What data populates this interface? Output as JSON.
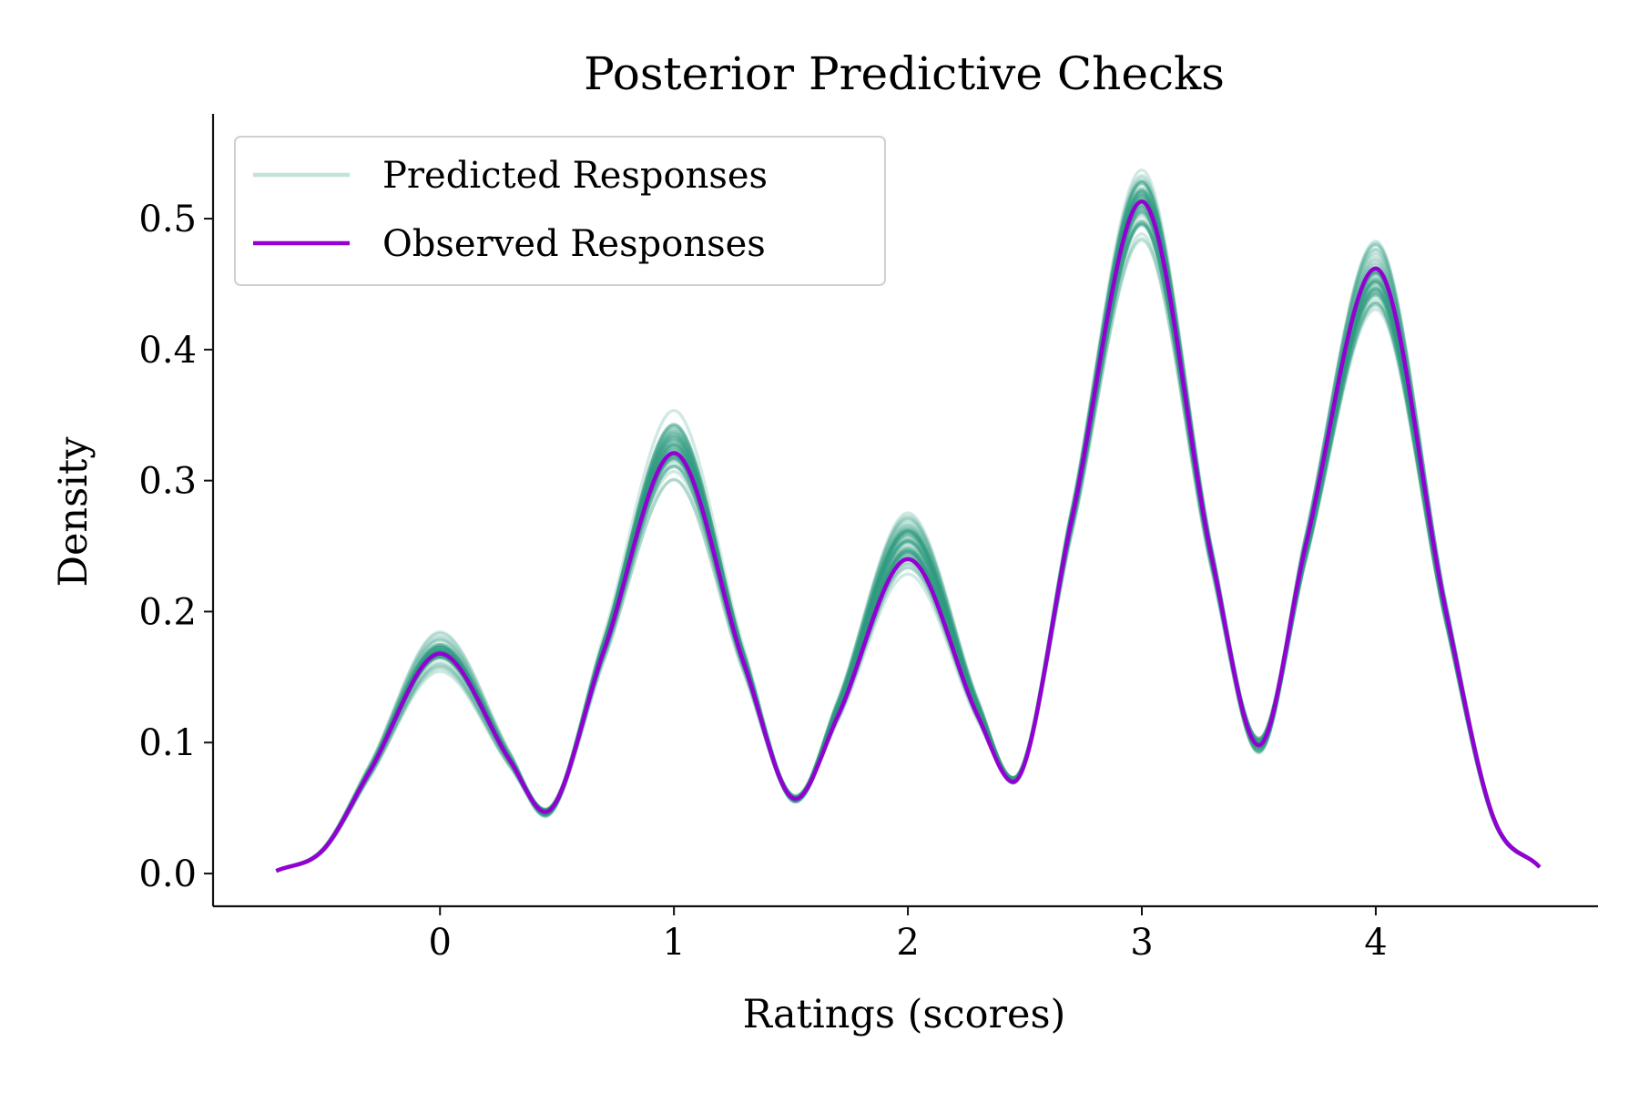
{
  "chart_data": {
    "type": "line",
    "title": "Posterior Predictive Checks",
    "xlabel": "Ratings (scores)",
    "ylabel": "Density",
    "xlim": [
      -0.97,
      4.95
    ],
    "ylim": [
      -0.025,
      0.58
    ],
    "xticks": [
      0,
      1,
      2,
      3,
      4
    ],
    "xtick_labels": [
      "0",
      "1",
      "2",
      "3",
      "4"
    ],
    "yticks": [
      0.0,
      0.1,
      0.2,
      0.3,
      0.4,
      0.5
    ],
    "ytick_labels": [
      "0.0",
      "0.1",
      "0.2",
      "0.3",
      "0.4",
      "0.5"
    ],
    "grid": false,
    "legend_position": "top-left",
    "series": [
      {
        "name": "Predicted Responses",
        "color": "#2e9a7f",
        "legend_color": "#c2e3d9",
        "sample_count": 60,
        "peak_ranges": [
          [
            0.15,
            0.19
          ],
          [
            0.295,
            0.36
          ],
          [
            0.225,
            0.28
          ],
          [
            0.475,
            0.55
          ],
          [
            0.42,
            0.488
          ]
        ],
        "trough_ranges": [
          [
            0.043,
            0.05
          ],
          [
            0.054,
            0.06
          ],
          [
            0.068,
            0.074
          ],
          [
            0.091,
            0.104
          ]
        ],
        "x_range": [
          -0.7,
          4.7
        ]
      },
      {
        "name": "Observed Responses",
        "color": "#9400d3",
        "x": [
          -0.7,
          -0.5,
          -0.3,
          0.0,
          0.3,
          0.45,
          0.7,
          1.0,
          1.3,
          1.52,
          1.7,
          2.0,
          2.3,
          2.45,
          2.7,
          3.0,
          3.3,
          3.5,
          3.7,
          4.0,
          4.3,
          4.5,
          4.7
        ],
        "y": [
          0.002,
          0.018,
          0.078,
          0.168,
          0.086,
          0.047,
          0.17,
          0.321,
          0.16,
          0.057,
          0.12,
          0.24,
          0.12,
          0.07,
          0.27,
          0.513,
          0.24,
          0.098,
          0.25,
          0.462,
          0.2,
          0.044,
          0.005
        ]
      }
    ]
  }
}
